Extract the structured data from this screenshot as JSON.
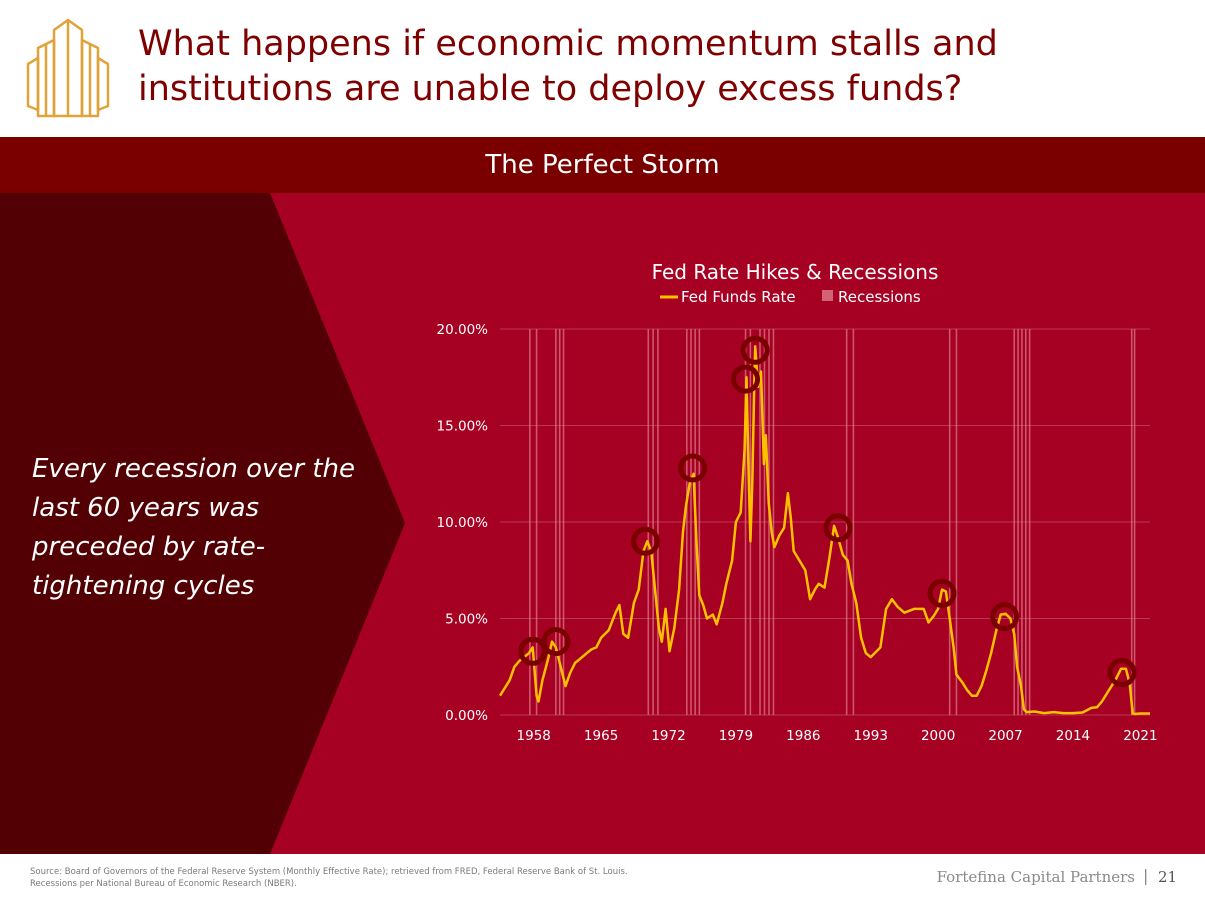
{
  "slide": {
    "title": "What happens if economic momentum stalls and institutions are unable to deploy excess funds?",
    "banner": "The Perfect Storm",
    "callout": "Every recession over the last 60 years was preceded by rate-tightening cycles",
    "source_line1": "Source: Board of Governors of the Federal Reserve System (Monthly Effective Rate); retrieved from FRED, Federal Reserve Bank of St. Louis.",
    "source_line2": "Recessions per National Bureau of Economic Research (NBER).",
    "brand": "Fortefina Capital Partners",
    "page_number": "21"
  },
  "colors": {
    "title": "#7f0000",
    "band": "#7a0000",
    "panel": "#a60022",
    "chevron": "#520003",
    "line": "#ffc000",
    "recession": "#e07a8c",
    "marker": "#7a0000",
    "logo": "#e0a33a"
  },
  "chart_data": {
    "type": "line",
    "title": "Fed Rate Hikes & Recessions",
    "legend": [
      "Fed Funds Rate",
      "Recessions"
    ],
    "xlabel": "",
    "ylabel": "",
    "xlim": [
      1954.5,
      2022.0
    ],
    "ylim": [
      0,
      20
    ],
    "yticks": [
      0,
      5,
      10,
      15,
      20
    ],
    "ytick_labels": [
      "0.00%",
      "5.00%",
      "10.00%",
      "15.00%",
      "20.00%"
    ],
    "xticks": [
      1958,
      1965,
      1972,
      1979,
      1986,
      1993,
      2000,
      2007,
      2014,
      2021
    ],
    "xtick_labels": [
      "1958",
      "1965",
      "1972",
      "1979",
      "1986",
      "1993",
      "2000",
      "2007",
      "2014",
      "2021"
    ],
    "recessions": [
      [
        1957.6,
        1958.3
      ],
      [
        1960.3,
        1961.1
      ],
      [
        1969.9,
        1970.9
      ],
      [
        1973.9,
        1975.2
      ],
      [
        1980.0,
        1980.5
      ],
      [
        1981.5,
        1982.9
      ],
      [
        1990.5,
        1991.2
      ],
      [
        2001.2,
        2001.9
      ],
      [
        2007.9,
        2009.5
      ],
      [
        2020.1,
        2020.4
      ]
    ],
    "series": [
      {
        "name": "Fed Funds Rate",
        "x": [
          1954.5,
          1955.0,
          1955.5,
          1956.0,
          1956.5,
          1957.0,
          1957.5,
          1957.9,
          1958.3,
          1958.5,
          1958.9,
          1959.5,
          1959.9,
          1960.3,
          1960.8,
          1961.3,
          1961.8,
          1962.3,
          1962.8,
          1963.5,
          1964.0,
          1964.5,
          1965.0,
          1965.8,
          1966.5,
          1966.9,
          1967.3,
          1967.8,
          1968.4,
          1968.9,
          1969.4,
          1969.8,
          1970.2,
          1970.6,
          1971.0,
          1971.3,
          1971.7,
          1972.1,
          1972.6,
          1973.1,
          1973.5,
          1973.8,
          1974.2,
          1974.6,
          1974.9,
          1975.2,
          1975.6,
          1976.0,
          1976.6,
          1977.0,
          1977.6,
          1978.0,
          1978.6,
          1979.0,
          1979.5,
          1979.9,
          1980.1,
          1980.3,
          1980.5,
          1980.7,
          1980.9,
          1981.0,
          1981.3,
          1981.6,
          1981.9,
          1982.1,
          1982.4,
          1982.7,
          1983.0,
          1983.5,
          1984.0,
          1984.4,
          1984.7,
          1985.0,
          1985.6,
          1986.2,
          1986.7,
          1987.2,
          1987.6,
          1988.2,
          1988.7,
          1989.2,
          1989.6,
          1990.1,
          1990.6,
          1991.0,
          1991.5,
          1992.0,
          1992.5,
          1993.0,
          1994.0,
          1994.6,
          1995.2,
          1995.8,
          1996.5,
          1997.5,
          1998.5,
          1999.0,
          1999.5,
          2000.0,
          2000.4,
          2000.8,
          2001.2,
          2001.6,
          2001.9,
          2002.5,
          2003.0,
          2003.5,
          2004.0,
          2004.5,
          2005.0,
          2005.5,
          2006.0,
          2006.5,
          2007.0,
          2007.5,
          2007.9,
          2008.2,
          2008.6,
          2008.9,
          2009.2,
          2010.0,
          2011.0,
          2012.0,
          2013.0,
          2014.0,
          2015.0,
          2015.9,
          2016.5,
          2017.0,
          2017.5,
          2018.0,
          2018.5,
          2019.0,
          2019.5,
          2019.9,
          2020.2,
          2020.4,
          2021.0,
          2021.5,
          2022.0
        ],
        "values": [
          1.0,
          1.4,
          1.8,
          2.5,
          2.8,
          3.0,
          3.2,
          3.5,
          1.0,
          0.7,
          1.8,
          2.9,
          3.8,
          3.5,
          2.5,
          1.5,
          2.2,
          2.7,
          2.9,
          3.2,
          3.4,
          3.5,
          4.0,
          4.4,
          5.3,
          5.7,
          4.2,
          4.0,
          5.8,
          6.5,
          8.5,
          9.0,
          8.5,
          6.5,
          4.5,
          3.8,
          5.5,
          3.3,
          4.5,
          6.5,
          9.5,
          10.8,
          12.0,
          12.5,
          9.0,
          6.2,
          5.7,
          5.0,
          5.2,
          4.7,
          5.8,
          6.8,
          8.0,
          10.0,
          10.5,
          13.8,
          17.5,
          13.0,
          9.0,
          12.0,
          17.0,
          19.1,
          17.0,
          17.8,
          13.0,
          14.5,
          11.0,
          9.5,
          8.7,
          9.3,
          9.7,
          11.5,
          10.2,
          8.5,
          8.0,
          7.5,
          6.0,
          6.5,
          6.8,
          6.6,
          8.1,
          9.8,
          9.2,
          8.3,
          8.0,
          6.8,
          5.8,
          4.0,
          3.2,
          3.0,
          3.5,
          5.5,
          6.0,
          5.6,
          5.3,
          5.5,
          5.5,
          4.8,
          5.1,
          5.5,
          6.5,
          6.4,
          5.0,
          3.5,
          2.1,
          1.7,
          1.3,
          1.0,
          1.0,
          1.5,
          2.3,
          3.2,
          4.3,
          5.2,
          5.25,
          5.0,
          4.2,
          2.5,
          1.5,
          0.3,
          0.15,
          0.18,
          0.1,
          0.15,
          0.1,
          0.1,
          0.13,
          0.37,
          0.4,
          0.7,
          1.1,
          1.5,
          1.9,
          2.4,
          2.4,
          1.6,
          0.09,
          0.05,
          0.08,
          0.08,
          0.08
        ]
      }
    ],
    "markers": [
      {
        "year": 1957.9,
        "value": 3.3
      },
      {
        "year": 1960.3,
        "value": 3.8
      },
      {
        "year": 1969.6,
        "value": 9.0
      },
      {
        "year": 1974.5,
        "value": 12.8
      },
      {
        "year": 1980.0,
        "value": 17.4
      },
      {
        "year": 1981.0,
        "value": 18.9
      },
      {
        "year": 1989.6,
        "value": 9.7
      },
      {
        "year": 2000.4,
        "value": 6.3
      },
      {
        "year": 2006.9,
        "value": 5.1
      },
      {
        "year": 2019.1,
        "value": 2.2
      }
    ]
  }
}
